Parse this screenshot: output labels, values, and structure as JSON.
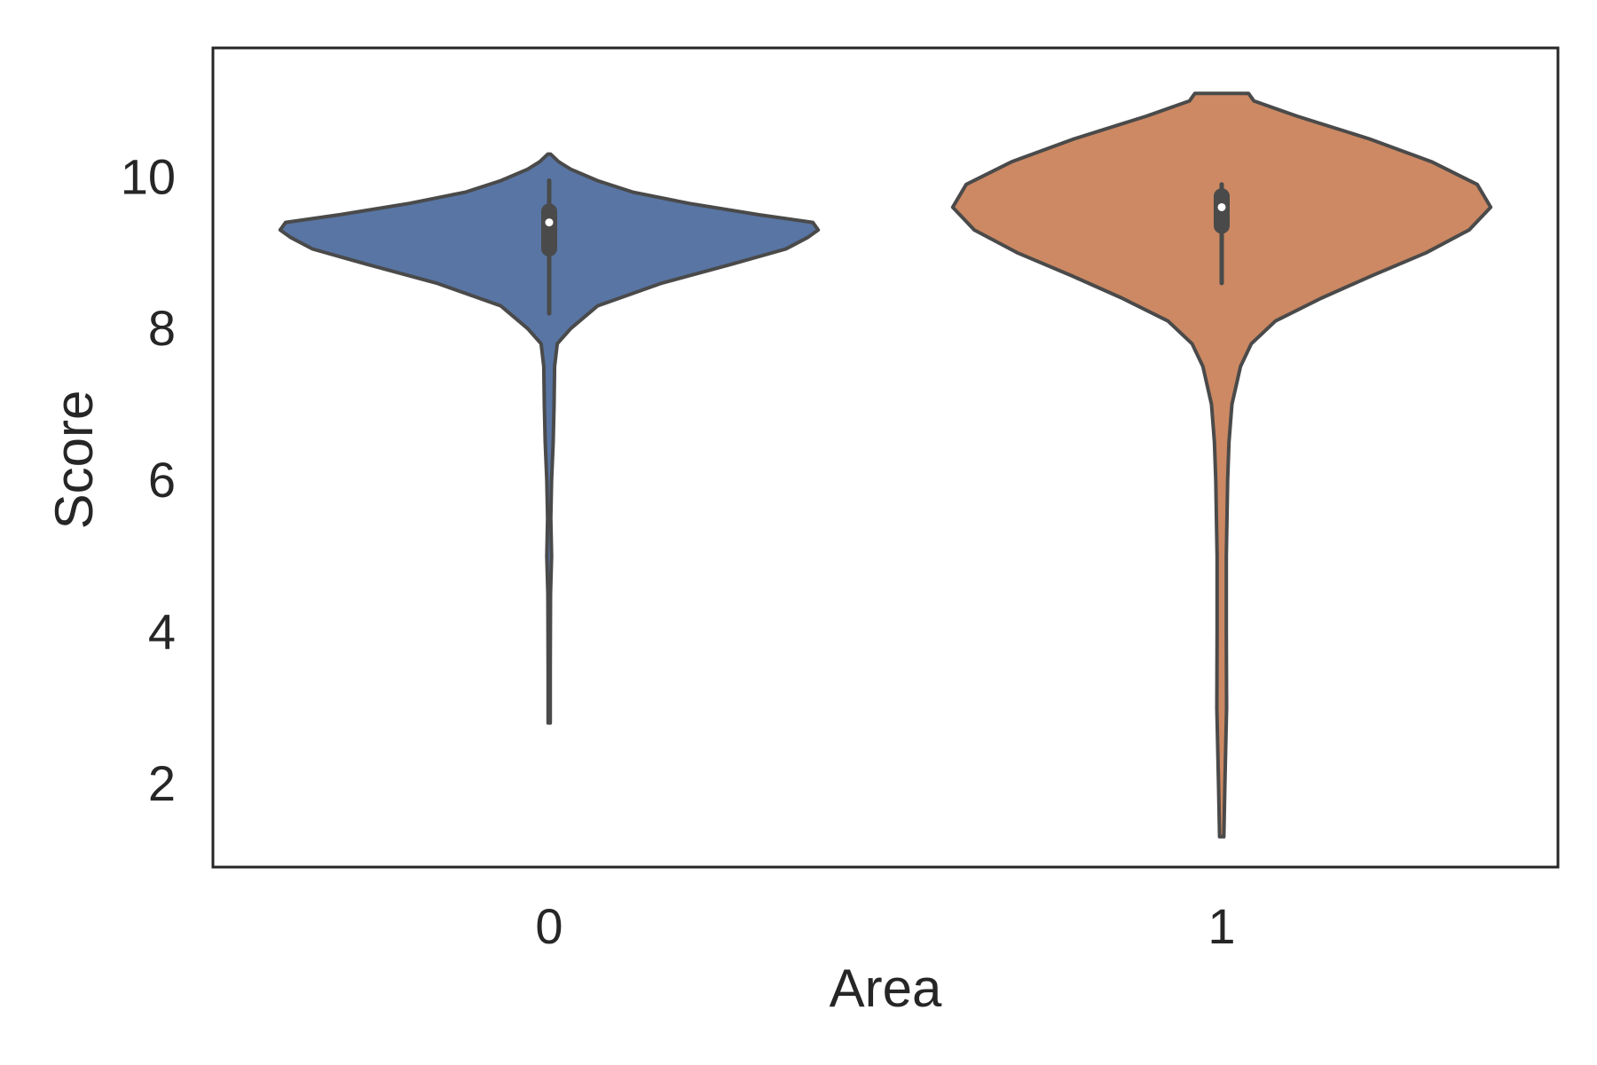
{
  "chart_data": {
    "type": "violin",
    "title": "",
    "xlabel": "Area",
    "ylabel": "Score",
    "ylim": [
      0.9,
      11.7
    ],
    "yticks": [
      "2",
      "4",
      "6",
      "8",
      "10"
    ],
    "grid": false,
    "categories": [
      "0",
      "1"
    ],
    "series": [
      {
        "category": "0",
        "color": "#5875a4",
        "median": 9.4,
        "q1": 8.95,
        "q3": 9.65,
        "whisker_low": 8.2,
        "whisker_high": 9.95,
        "min": 2.8,
        "max": 10.3,
        "density_profile": [
          [
            2.8,
            0.004
          ],
          [
            3.5,
            0.004
          ],
          [
            4.5,
            0.005
          ],
          [
            5.0,
            0.009
          ],
          [
            5.5,
            0.006
          ],
          [
            6.0,
            0.009
          ],
          [
            6.5,
            0.015
          ],
          [
            7.0,
            0.018
          ],
          [
            7.5,
            0.02
          ],
          [
            7.8,
            0.03
          ],
          [
            8.0,
            0.08
          ],
          [
            8.3,
            0.18
          ],
          [
            8.6,
            0.42
          ],
          [
            8.85,
            0.68
          ],
          [
            9.05,
            0.88
          ],
          [
            9.2,
            0.96
          ],
          [
            9.3,
            1.0
          ],
          [
            9.4,
            0.98
          ],
          [
            9.5,
            0.78
          ],
          [
            9.65,
            0.52
          ],
          [
            9.8,
            0.31
          ],
          [
            9.95,
            0.18
          ],
          [
            10.1,
            0.08
          ],
          [
            10.2,
            0.035
          ],
          [
            10.3,
            0.005
          ]
        ]
      },
      {
        "category": "1",
        "color": "#cc8963",
        "median": 9.6,
        "q1": 9.25,
        "q3": 9.85,
        "whisker_low": 8.6,
        "whisker_high": 9.9,
        "min": 1.3,
        "max": 11.1,
        "density_profile": [
          [
            1.3,
            0.008
          ],
          [
            2.0,
            0.012
          ],
          [
            3.0,
            0.018
          ],
          [
            4.0,
            0.017
          ],
          [
            5.0,
            0.017
          ],
          [
            6.0,
            0.022
          ],
          [
            6.5,
            0.027
          ],
          [
            7.0,
            0.038
          ],
          [
            7.5,
            0.07
          ],
          [
            7.8,
            0.11
          ],
          [
            8.1,
            0.2
          ],
          [
            8.4,
            0.37
          ],
          [
            8.7,
            0.56
          ],
          [
            9.0,
            0.76
          ],
          [
            9.3,
            0.92
          ],
          [
            9.6,
            1.0
          ],
          [
            9.9,
            0.95
          ],
          [
            10.2,
            0.78
          ],
          [
            10.5,
            0.55
          ],
          [
            10.8,
            0.28
          ],
          [
            11.0,
            0.12
          ],
          [
            11.1,
            0.1
          ]
        ]
      }
    ]
  }
}
